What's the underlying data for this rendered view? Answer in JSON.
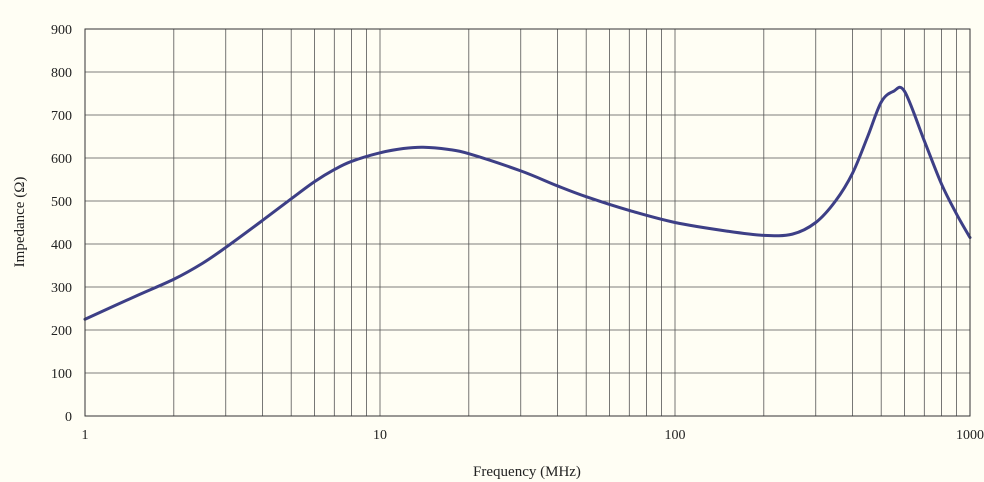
{
  "chart_data": {
    "type": "line",
    "title": "",
    "xlabel": "Frequency (MHz)",
    "ylabel": "Impedance (Ω)",
    "xscale": "log",
    "xlim": [
      1,
      1000
    ],
    "ylim": [
      0,
      900
    ],
    "x_ticks": [
      1,
      10,
      100,
      1000
    ],
    "x_tick_labels": [
      "1",
      "10",
      "100",
      "1000"
    ],
    "y_ticks": [
      0,
      100,
      200,
      300,
      400,
      500,
      600,
      700,
      800,
      900
    ],
    "y_tick_labels": [
      "0",
      "100",
      "200",
      "300",
      "400",
      "500",
      "600",
      "700",
      "800",
      "900"
    ],
    "grid": true,
    "background_color": "#fffef4",
    "grid_color": "#555555",
    "series": [
      {
        "color": "#3d3f86",
        "x": [
          1,
          1.5,
          2,
          2.5,
          3,
          4,
          5,
          6,
          7,
          8,
          10,
          12,
          14,
          17,
          20,
          30,
          40,
          50,
          70,
          100,
          150,
          200,
          250,
          300,
          350,
          400,
          450,
          500,
          550,
          600,
          700,
          800,
          900,
          1000
        ],
        "y": [
          225,
          280,
          318,
          355,
          392,
          455,
          505,
          545,
          573,
          592,
          612,
          622,
          625,
          620,
          610,
          570,
          535,
          510,
          478,
          450,
          430,
          420,
          423,
          450,
          500,
          565,
          650,
          730,
          755,
          755,
          640,
          540,
          470,
          415
        ]
      }
    ]
  }
}
